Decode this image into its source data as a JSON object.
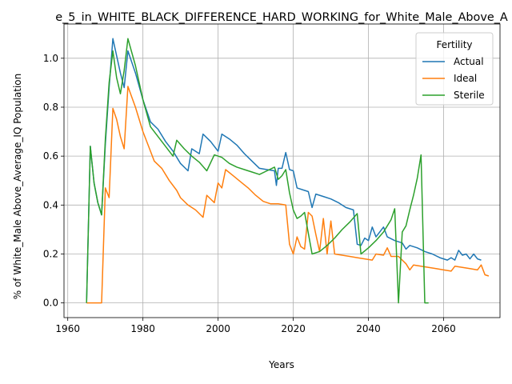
{
  "chart_data": {
    "type": "line",
    "title": "e_5_in_WHITE_BLACK_DIFFERENCE_HARD_WORKING_for_White_Male_Above_A",
    "xlabel": "Years",
    "ylabel": "% of White_Male Above_Average_IQ Population",
    "xlim": [
      1959,
      2075
    ],
    "ylim": [
      -0.06,
      1.14
    ],
    "xticks": [
      1960,
      1980,
      2000,
      2020,
      2040,
      2060
    ],
    "yticks": [
      0.0,
      0.2,
      0.4,
      0.6,
      0.8,
      1.0
    ],
    "xtick_labels": [
      "1960",
      "1980",
      "2000",
      "2020",
      "2040",
      "2060"
    ],
    "ytick_labels": [
      "0.0",
      "0.2",
      "0.4",
      "0.6",
      "0.8",
      "1.0"
    ],
    "grid": true,
    "legend": {
      "title": "Fertility",
      "placement": "top-right"
    },
    "series": [
      {
        "name": "Actual",
        "color": "#1f77b4",
        "points": [
          [
            1965,
            0.0
          ],
          [
            1966,
            0.64
          ],
          [
            1967,
            0.49
          ],
          [
            1968,
            0.41
          ],
          [
            1969,
            0.36
          ],
          [
            1970,
            0.65
          ],
          [
            1971,
            0.88
          ],
          [
            1972,
            1.08
          ],
          [
            1973,
            1.01
          ],
          [
            1974,
            0.94
          ],
          [
            1975,
            0.88
          ],
          [
            1976,
            1.03
          ],
          [
            1978,
            0.94
          ],
          [
            1980,
            0.83
          ],
          [
            1982,
            0.74
          ],
          [
            1984,
            0.71
          ],
          [
            1986,
            0.66
          ],
          [
            1988,
            0.62
          ],
          [
            1990,
            0.57
          ],
          [
            1992,
            0.54
          ],
          [
            1993,
            0.63
          ],
          [
            1995,
            0.61
          ],
          [
            1996,
            0.69
          ],
          [
            1998,
            0.66
          ],
          [
            2000,
            0.62
          ],
          [
            2001,
            0.69
          ],
          [
            2003,
            0.67
          ],
          [
            2005,
            0.645
          ],
          [
            2007,
            0.61
          ],
          [
            2009,
            0.58
          ],
          [
            2011,
            0.55
          ],
          [
            2013,
            0.545
          ],
          [
            2015,
            0.54
          ],
          [
            2015.5,
            0.48
          ],
          [
            2016,
            0.55
          ],
          [
            2017,
            0.55
          ],
          [
            2018,
            0.615
          ],
          [
            2019,
            0.545
          ],
          [
            2020,
            0.54
          ],
          [
            2021,
            0.47
          ],
          [
            2023,
            0.46
          ],
          [
            2024,
            0.455
          ],
          [
            2025,
            0.39
          ],
          [
            2026,
            0.445
          ],
          [
            2027,
            0.44
          ],
          [
            2028,
            0.435
          ],
          [
            2030,
            0.425
          ],
          [
            2032,
            0.41
          ],
          [
            2034,
            0.39
          ],
          [
            2036,
            0.38
          ],
          [
            2037,
            0.24
          ],
          [
            2038,
            0.235
          ],
          [
            2039,
            0.265
          ],
          [
            2040,
            0.255
          ],
          [
            2041,
            0.31
          ],
          [
            2042,
            0.27
          ],
          [
            2044,
            0.31
          ],
          [
            2045,
            0.27
          ],
          [
            2047,
            0.255
          ],
          [
            2049,
            0.245
          ],
          [
            2050,
            0.22
          ],
          [
            2051,
            0.235
          ],
          [
            2053,
            0.225
          ],
          [
            2055,
            0.21
          ],
          [
            2057,
            0.2
          ],
          [
            2059,
            0.185
          ],
          [
            2061,
            0.175
          ],
          [
            2062,
            0.185
          ],
          [
            2063,
            0.175
          ],
          [
            2064,
            0.215
          ],
          [
            2065,
            0.195
          ],
          [
            2066,
            0.2
          ],
          [
            2067,
            0.18
          ],
          [
            2068,
            0.2
          ],
          [
            2069,
            0.18
          ],
          [
            2070,
            0.175
          ]
        ]
      },
      {
        "name": "Ideal",
        "color": "#ff7f0e",
        "points": [
          [
            1965,
            0.0
          ],
          [
            1966,
            0.0
          ],
          [
            1967,
            0.0
          ],
          [
            1968,
            0.0
          ],
          [
            1969,
            0.0
          ],
          [
            1970,
            0.47
          ],
          [
            1971,
            0.43
          ],
          [
            1972,
            0.795
          ],
          [
            1973,
            0.75
          ],
          [
            1974,
            0.68
          ],
          [
            1975,
            0.63
          ],
          [
            1976,
            0.885
          ],
          [
            1978,
            0.8
          ],
          [
            1980,
            0.7
          ],
          [
            1982,
            0.62
          ],
          [
            1983,
            0.58
          ],
          [
            1985,
            0.55
          ],
          [
            1987,
            0.5
          ],
          [
            1989,
            0.46
          ],
          [
            1990,
            0.43
          ],
          [
            1992,
            0.4
          ],
          [
            1994,
            0.38
          ],
          [
            1996,
            0.35
          ],
          [
            1997,
            0.44
          ],
          [
            1999,
            0.41
          ],
          [
            2000,
            0.49
          ],
          [
            2001,
            0.47
          ],
          [
            2002,
            0.545
          ],
          [
            2004,
            0.52
          ],
          [
            2006,
            0.495
          ],
          [
            2008,
            0.47
          ],
          [
            2010,
            0.44
          ],
          [
            2012,
            0.415
          ],
          [
            2014,
            0.405
          ],
          [
            2016,
            0.405
          ],
          [
            2018,
            0.4
          ],
          [
            2019,
            0.24
          ],
          [
            2020,
            0.2
          ],
          [
            2021,
            0.27
          ],
          [
            2022,
            0.23
          ],
          [
            2023,
            0.22
          ],
          [
            2024,
            0.37
          ],
          [
            2025,
            0.355
          ],
          [
            2026,
            0.28
          ],
          [
            2027,
            0.21
          ],
          [
            2028,
            0.345
          ],
          [
            2029,
            0.2
          ],
          [
            2030,
            0.335
          ],
          [
            2031,
            0.2
          ],
          [
            2033,
            0.195
          ],
          [
            2035,
            0.19
          ],
          [
            2037,
            0.185
          ],
          [
            2039,
            0.18
          ],
          [
            2041,
            0.175
          ],
          [
            2042,
            0.2
          ],
          [
            2044,
            0.195
          ],
          [
            2045,
            0.225
          ],
          [
            2046,
            0.19
          ],
          [
            2048,
            0.19
          ],
          [
            2050,
            0.16
          ],
          [
            2051,
            0.135
          ],
          [
            2052,
            0.155
          ],
          [
            2054,
            0.15
          ],
          [
            2056,
            0.145
          ],
          [
            2058,
            0.14
          ],
          [
            2060,
            0.135
          ],
          [
            2062,
            0.13
          ],
          [
            2063,
            0.15
          ],
          [
            2065,
            0.145
          ],
          [
            2067,
            0.14
          ],
          [
            2069,
            0.135
          ],
          [
            2070,
            0.155
          ],
          [
            2071,
            0.115
          ],
          [
            2072,
            0.11
          ]
        ]
      },
      {
        "name": "Sterile",
        "color": "#2ca02c",
        "points": [
          [
            1965,
            0.0
          ],
          [
            1966,
            0.64
          ],
          [
            1967,
            0.49
          ],
          [
            1968,
            0.41
          ],
          [
            1969,
            0.36
          ],
          [
            1970,
            0.67
          ],
          [
            1971,
            0.9
          ],
          [
            1972,
            1.03
          ],
          [
            1973,
            0.92
          ],
          [
            1974,
            0.855
          ],
          [
            1975,
            0.95
          ],
          [
            1976,
            1.08
          ],
          [
            1978,
            0.97
          ],
          [
            1980,
            0.83
          ],
          [
            1982,
            0.72
          ],
          [
            1984,
            0.68
          ],
          [
            1986,
            0.64
          ],
          [
            1988,
            0.6
          ],
          [
            1989,
            0.665
          ],
          [
            1991,
            0.63
          ],
          [
            1993,
            0.6
          ],
          [
            1995,
            0.575
          ],
          [
            1997,
            0.54
          ],
          [
            1999,
            0.605
          ],
          [
            2001,
            0.595
          ],
          [
            2003,
            0.57
          ],
          [
            2005,
            0.555
          ],
          [
            2007,
            0.545
          ],
          [
            2009,
            0.535
          ],
          [
            2011,
            0.525
          ],
          [
            2013,
            0.54
          ],
          [
            2015,
            0.555
          ],
          [
            2016,
            0.505
          ],
          [
            2017,
            0.52
          ],
          [
            2018,
            0.545
          ],
          [
            2019,
            0.45
          ],
          [
            2020,
            0.38
          ],
          [
            2021,
            0.345
          ],
          [
            2022,
            0.355
          ],
          [
            2023,
            0.37
          ],
          [
            2025,
            0.2
          ],
          [
            2027,
            0.21
          ],
          [
            2029,
            0.235
          ],
          [
            2031,
            0.265
          ],
          [
            2033,
            0.3
          ],
          [
            2035,
            0.33
          ],
          [
            2037,
            0.365
          ],
          [
            2038,
            0.2
          ],
          [
            2040,
            0.225
          ],
          [
            2042,
            0.255
          ],
          [
            2044,
            0.29
          ],
          [
            2046,
            0.34
          ],
          [
            2047,
            0.385
          ],
          [
            2048,
            0.0
          ],
          [
            2049,
            0.29
          ],
          [
            2050,
            0.315
          ],
          [
            2051,
            0.38
          ],
          [
            2052,
            0.44
          ],
          [
            2053,
            0.51
          ],
          [
            2054,
            0.605
          ],
          [
            2055,
            0.0
          ],
          [
            2056,
            0.0
          ]
        ]
      }
    ]
  }
}
